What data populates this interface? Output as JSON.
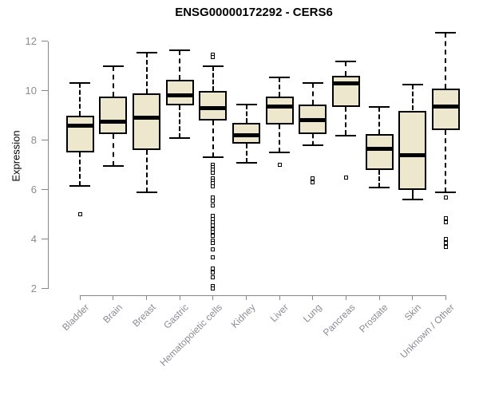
{
  "chart_data": {
    "type": "boxplot",
    "title": "ENSG00000172292 - CERS6",
    "ylabel": "Expression",
    "xlabel": "",
    "ylim": [
      2,
      12.4
    ],
    "yticks": [
      2,
      4,
      6,
      8,
      10,
      12
    ],
    "grid": false,
    "legend": "none",
    "categories": [
      "Bladder",
      "Brain",
      "Breast",
      "Gastric",
      "Hematopoietic cells",
      "Kidney",
      "Liver",
      "Lung",
      "Pancreas",
      "Prostate",
      "Skin",
      "Unknown / Other"
    ],
    "boxes": [
      {
        "category": "Bladder",
        "low": 6.15,
        "q1": 7.5,
        "median": 8.6,
        "q3": 9.0,
        "high": 10.3,
        "outliers": [
          5.0
        ]
      },
      {
        "category": "Brain",
        "low": 6.95,
        "q1": 8.25,
        "median": 8.75,
        "q3": 9.75,
        "high": 11.0,
        "outliers": []
      },
      {
        "category": "Breast",
        "low": 5.9,
        "q1": 7.6,
        "median": 8.9,
        "q3": 9.9,
        "high": 11.55,
        "outliers": []
      },
      {
        "category": "Gastric",
        "low": 8.1,
        "q1": 9.4,
        "median": 9.8,
        "q3": 10.45,
        "high": 11.65,
        "outliers": []
      },
      {
        "category": "Hematopoietic cells",
        "low": 7.3,
        "q1": 8.8,
        "median": 9.3,
        "q3": 10.0,
        "high": 11.0,
        "outliers": [
          11.45,
          11.35,
          7.0,
          6.9,
          6.8,
          6.7,
          6.45,
          6.35,
          6.25,
          6.15,
          5.7,
          5.55,
          5.35,
          4.95,
          4.8,
          4.7,
          4.55,
          4.4,
          4.3,
          4.15,
          3.95,
          3.85,
          3.6,
          3.25,
          2.8,
          2.65,
          2.45,
          2.1,
          2.0
        ]
      },
      {
        "category": "Kidney",
        "low": 7.1,
        "q1": 7.85,
        "median": 8.2,
        "q3": 8.7,
        "high": 9.45,
        "outliers": []
      },
      {
        "category": "Liver",
        "low": 7.5,
        "q1": 8.65,
        "median": 9.35,
        "q3": 9.75,
        "high": 10.55,
        "outliers": [
          7.0
        ]
      },
      {
        "category": "Lung",
        "low": 7.8,
        "q1": 8.25,
        "median": 8.8,
        "q3": 9.45,
        "high": 10.3,
        "outliers": [
          6.45,
          6.3
        ]
      },
      {
        "category": "Pancreas",
        "low": 8.2,
        "q1": 9.35,
        "median": 10.3,
        "q3": 10.6,
        "high": 11.2,
        "outliers": [
          6.5
        ]
      },
      {
        "category": "Prostate",
        "low": 6.1,
        "q1": 6.8,
        "median": 7.65,
        "q3": 8.25,
        "high": 9.35,
        "outliers": []
      },
      {
        "category": "Skin",
        "low": 5.6,
        "q1": 6.0,
        "median": 7.4,
        "q3": 9.2,
        "high": 10.25,
        "outliers": []
      },
      {
        "category": "Unknown / Other",
        "low": 5.9,
        "q1": 8.4,
        "median": 9.35,
        "q3": 10.1,
        "high": 12.35,
        "outliers": [
          5.7,
          4.85,
          4.7,
          4.0,
          3.85,
          3.7
        ]
      }
    ]
  },
  "colors": {
    "box_fill": "#ece7cd",
    "box_border": "#000000",
    "median": "#000000",
    "whisker": "#000000",
    "axis": "#878787",
    "tick_label": "#8b8b96",
    "title": "#000000",
    "background": "#ffffff"
  }
}
